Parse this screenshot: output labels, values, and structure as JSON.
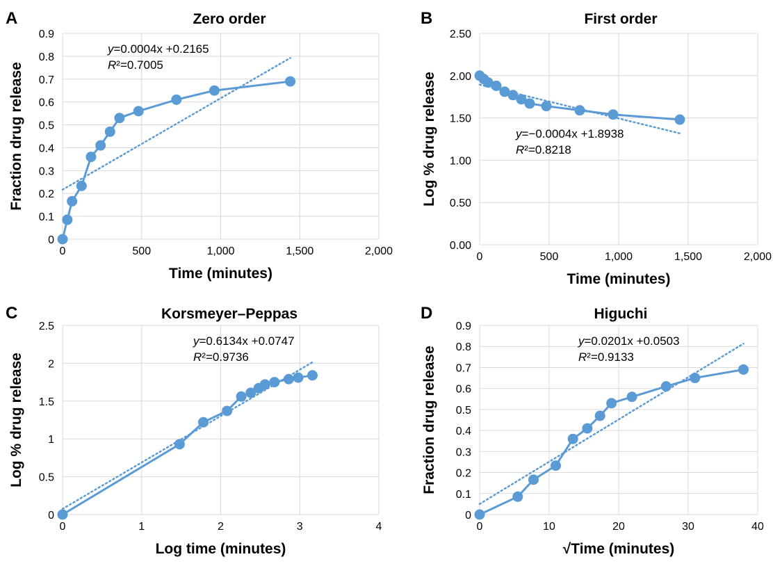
{
  "style": {
    "series_color": "#5b9bd5"
  },
  "chart_data": [
    {
      "panel": "A",
      "type": "line",
      "title": "Zero order",
      "xlabel": "Time (minutes)",
      "ylabel": "Fraction drug release",
      "xlim": [
        0,
        2000
      ],
      "ylim": [
        0,
        0.9
      ],
      "xticks": [
        "0",
        "500",
        "1,000",
        "1,500",
        "2,000"
      ],
      "yticks": [
        "0",
        "0.1",
        "0.2",
        "0.3",
        "0.4",
        "0.5",
        "0.6",
        "0.7",
        "0.8",
        "0.9"
      ],
      "grid": true,
      "x": [
        0,
        30,
        60,
        120,
        180,
        240,
        300,
        360,
        480,
        720,
        960,
        1440
      ],
      "y": [
        0,
        0.085,
        0.166,
        0.233,
        0.36,
        0.41,
        0.47,
        0.53,
        0.56,
        0.61,
        0.65,
        0.69
      ],
      "trendline": {
        "type": "linear",
        "slope": 0.0004,
        "intercept": 0.2165,
        "x_range": [
          0,
          1440
        ]
      },
      "equation_label": {
        "y": "y",
        "eq_rest": "=0.0004x +0.2165",
        "r2_label": "R",
        "r2_rest": "²=0.7005"
      }
    },
    {
      "panel": "B",
      "type": "line",
      "title": "First order",
      "xlabel": "Time (minutes)",
      "ylabel": "Log % drug release",
      "xlim": [
        0,
        2000
      ],
      "ylim": [
        0,
        2.5
      ],
      "xticks": [
        "0",
        "500",
        "1,000",
        "1,500",
        "2,000"
      ],
      "yticks": [
        "0.00",
        "0.50",
        "1.00",
        "1.50",
        "2.00",
        "2.50"
      ],
      "grid": true,
      "x": [
        0,
        30,
        60,
        120,
        180,
        240,
        300,
        360,
        480,
        720,
        960,
        1440
      ],
      "y": [
        2.0,
        1.96,
        1.92,
        1.88,
        1.81,
        1.77,
        1.72,
        1.67,
        1.64,
        1.59,
        1.54,
        1.48
      ],
      "trendline": {
        "type": "linear",
        "slope": -0.0004,
        "intercept": 1.8938,
        "x_range": [
          0,
          1440
        ]
      },
      "equation_label": {
        "y": "y",
        "eq_rest": "=−0.0004x +1.8938",
        "r2_label": "R",
        "r2_rest": "²=0.8218"
      }
    },
    {
      "panel": "C",
      "type": "line",
      "title": "Korsmeyer–Peppas",
      "xlabel": "Log time (minutes)",
      "ylabel": "Log % drug release",
      "xlim": [
        0,
        4
      ],
      "ylim": [
        0,
        2.5
      ],
      "xticks": [
        "0",
        "1",
        "2",
        "3",
        "4"
      ],
      "yticks": [
        "0",
        "0.5",
        "1",
        "1.5",
        "2",
        "2.5"
      ],
      "grid": true,
      "x": [
        0,
        1.48,
        1.78,
        2.08,
        2.26,
        2.38,
        2.48,
        2.56,
        2.68,
        2.86,
        2.98,
        3.16
      ],
      "y": [
        0,
        0.93,
        1.22,
        1.37,
        1.56,
        1.61,
        1.67,
        1.72,
        1.75,
        1.79,
        1.81,
        1.84
      ],
      "trendline": {
        "type": "linear",
        "slope": 0.6134,
        "intercept": 0.0747,
        "x_range": [
          0,
          3.16
        ]
      },
      "equation_label": {
        "y": "y",
        "eq_rest": "=0.6134x +0.0747",
        "r2_label": "R",
        "r2_rest": "²=0.9736"
      }
    },
    {
      "panel": "D",
      "type": "line",
      "title": "Higuchi",
      "xlabel": "√Time (minutes)",
      "ylabel": "Fraction drug release",
      "xlim": [
        0,
        40
      ],
      "ylim": [
        0,
        0.9
      ],
      "xticks": [
        "0",
        "10",
        "20",
        "30",
        "40"
      ],
      "yticks": [
        "0",
        "0.1",
        "0.2",
        "0.3",
        "0.4",
        "0.5",
        "0.6",
        "0.7",
        "0.8",
        "0.9"
      ],
      "grid": true,
      "x": [
        0,
        5.48,
        7.75,
        10.95,
        13.42,
        15.49,
        17.32,
        18.97,
        21.91,
        26.83,
        30.98,
        37.95
      ],
      "y": [
        0,
        0.085,
        0.166,
        0.233,
        0.36,
        0.41,
        0.47,
        0.53,
        0.56,
        0.61,
        0.65,
        0.69
      ],
      "trendline": {
        "type": "linear",
        "slope": 0.0201,
        "intercept": 0.0503,
        "x_range": [
          0,
          37.95
        ]
      },
      "equation_label": {
        "y": "y",
        "eq_rest": "=0.0201x +0.0503",
        "r2_label": "R",
        "r2_rest": "²=0.9133"
      }
    }
  ]
}
